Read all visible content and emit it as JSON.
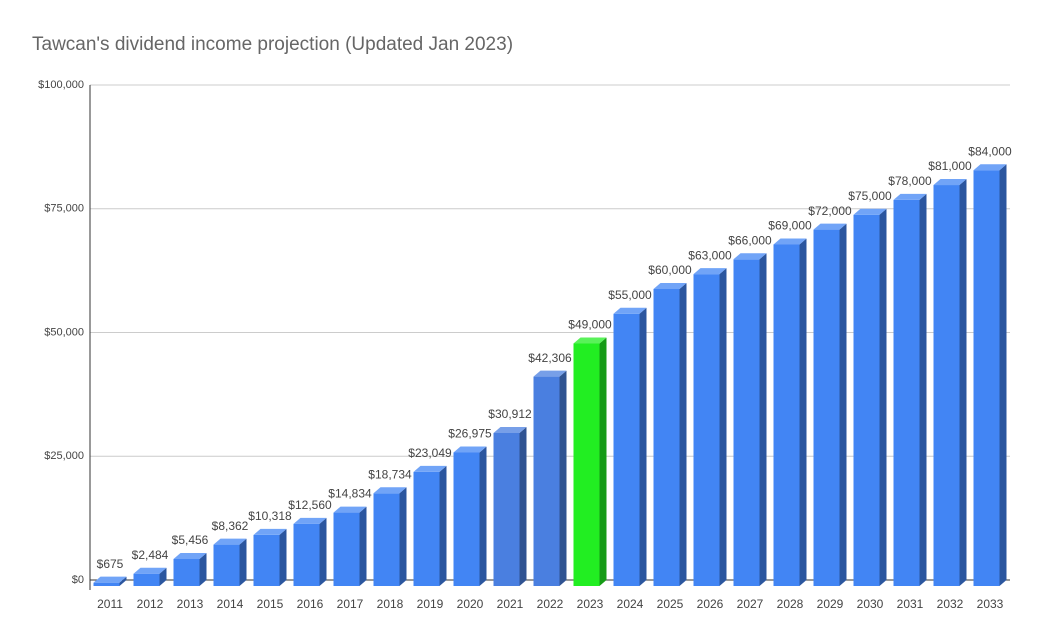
{
  "chart_data": {
    "type": "bar3d",
    "title": "Tawcan's dividend income projection (Updated Jan 2023)",
    "categories": [
      "2011",
      "2012",
      "2013",
      "2014",
      "2015",
      "2016",
      "2017",
      "2018",
      "2019",
      "2020",
      "2021",
      "2022",
      "2023",
      "2024",
      "2025",
      "2026",
      "2027",
      "2028",
      "2029",
      "2030",
      "2031",
      "2032",
      "2033"
    ],
    "values": [
      675,
      2484,
      5456,
      8362,
      10318,
      12560,
      14834,
      18734,
      23049,
      26975,
      30912,
      42306,
      49000,
      55000,
      60000,
      63000,
      66000,
      69000,
      72000,
      75000,
      78000,
      81000,
      84000
    ],
    "value_labels": [
      "$675",
      "$2,484",
      "$5,456",
      "$8,362",
      "$10,318",
      "$12,560",
      "$14,834",
      "$18,734",
      "$23,049",
      "$26,975",
      "$30,912",
      "$42,306",
      "$49,000",
      "$55,000",
      "$60,000",
      "$63,000",
      "$66,000",
      "$69,000",
      "$72,000",
      "$75,000",
      "$78,000",
      "$81,000",
      "$84,000"
    ],
    "colors": [
      "#4285f4",
      "#4285f4",
      "#4285f4",
      "#4285f4",
      "#4285f4",
      "#4285f4",
      "#4285f4",
      "#4285f4",
      "#4285f4",
      "#4285f4",
      "#4a7fe0",
      "#4a7fe0",
      "#22ee22",
      "#4285f4",
      "#4285f4",
      "#4285f4",
      "#4285f4",
      "#4285f4",
      "#4285f4",
      "#4285f4",
      "#4285f4",
      "#4285f4",
      "#4285f4"
    ],
    "ylim": [
      0,
      100000
    ],
    "yticks": [
      {
        "value": 0,
        "label": "$0"
      },
      {
        "value": 25000,
        "label": "$25,000"
      },
      {
        "value": 50000,
        "label": "$50,000"
      },
      {
        "value": 75000,
        "label": "$75,000"
      },
      {
        "value": 100000,
        "label": "$100,000"
      }
    ],
    "grid": true
  }
}
